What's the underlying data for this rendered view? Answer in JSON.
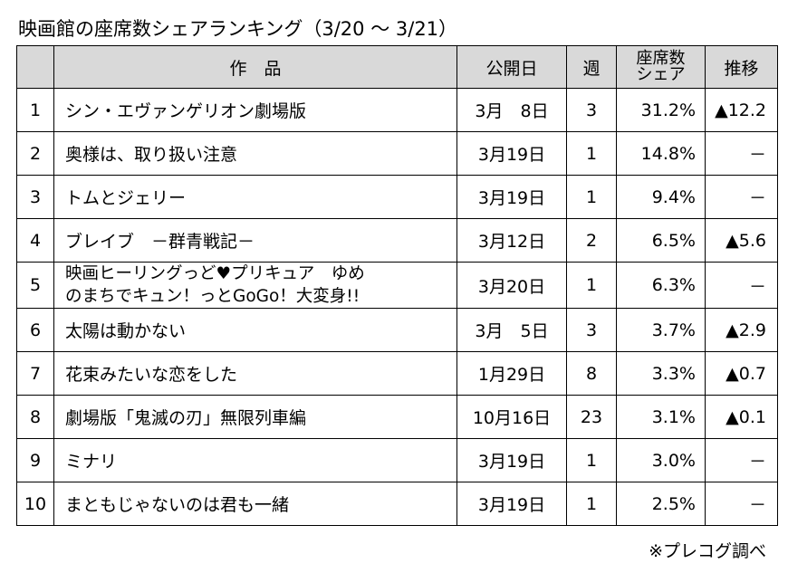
{
  "title": "映画館の座席数シェアランキング（3/20 ～ 3/21）",
  "headers": {
    "rank": "",
    "title": "作　品",
    "release": "公開日",
    "week": "週",
    "share_line1": "座席数",
    "share_line2": "シェア",
    "trend": "推移"
  },
  "rows": [
    {
      "rank": "1",
      "title": "シン・エヴァンゲリオン劇場版",
      "title2": "",
      "release": "3月　8日",
      "week": "3",
      "share": "31.2%",
      "trend": "▲12.2"
    },
    {
      "rank": "2",
      "title": "奥様は、取り扱い注意",
      "title2": "",
      "release": "3月19日",
      "week": "1",
      "share": "14.8%",
      "trend": "－"
    },
    {
      "rank": "3",
      "title": "トムとジェリー",
      "title2": "",
      "release": "3月19日",
      "week": "1",
      "share": "9.4%",
      "trend": "－"
    },
    {
      "rank": "4",
      "title": "ブレイブ　－群青戦記－",
      "title2": "",
      "release": "3月12日",
      "week": "2",
      "share": "6.5%",
      "trend": "▲5.6"
    },
    {
      "rank": "5",
      "title": "映画ヒーリングっど♥プリキュア　ゆめ",
      "title2": "のまちでキュン！っとGoGo！大変身!!",
      "release": "3月20日",
      "week": "1",
      "share": "6.3%",
      "trend": "－"
    },
    {
      "rank": "6",
      "title": "太陽は動かない",
      "title2": "",
      "release": "3月　5日",
      "week": "3",
      "share": "3.7%",
      "trend": "▲2.9"
    },
    {
      "rank": "7",
      "title": "花束みたいな恋をした",
      "title2": "",
      "release": "1月29日",
      "week": "8",
      "share": "3.3%",
      "trend": "▲0.7"
    },
    {
      "rank": "8",
      "title": "劇場版「鬼滅の刃」無限列車編",
      "title2": "",
      "release": "10月16日",
      "week": "23",
      "share": "3.1%",
      "trend": "▲0.1"
    },
    {
      "rank": "9",
      "title": "ミナリ",
      "title2": "",
      "release": "3月19日",
      "week": "1",
      "share": "3.0%",
      "trend": "－"
    },
    {
      "rank": "10",
      "title": "まともじゃないのは君も一緒",
      "title2": "",
      "release": "3月19日",
      "week": "1",
      "share": "2.5%",
      "trend": "－"
    }
  ],
  "source": "※プレコグ調べ"
}
